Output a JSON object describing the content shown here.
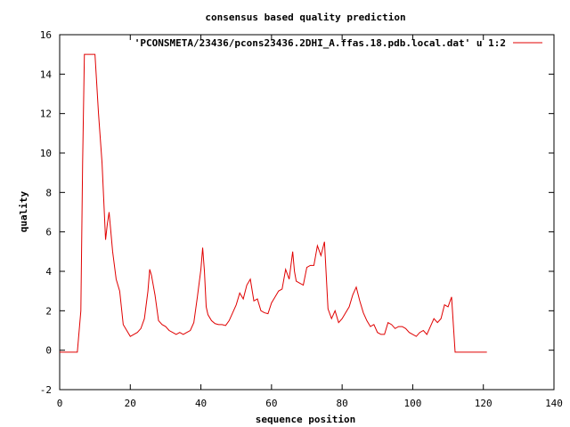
{
  "chart_data": {
    "type": "line",
    "title": "consensus based quality prediction",
    "xlabel": "sequence position",
    "ylabel": "quality",
    "xlim": [
      0,
      140
    ],
    "ylim": [
      -2,
      16
    ],
    "xticks": [
      0,
      20,
      40,
      60,
      80,
      100,
      120,
      140
    ],
    "yticks": [
      -2,
      0,
      2,
      4,
      6,
      8,
      10,
      12,
      14,
      16
    ],
    "grid": false,
    "legend_position": "top-right",
    "series": [
      {
        "name": "'PCONSMETA/23436/pcons23436.2DHI_A.ffas.18.pdb.local.dat' u 1:2",
        "color": "#e00000",
        "points": [
          [
            0,
            -0.1
          ],
          [
            1,
            -0.1
          ],
          [
            2,
            -0.1
          ],
          [
            3,
            -0.1
          ],
          [
            4,
            -0.1
          ],
          [
            5,
            -0.1
          ],
          [
            6,
            2.0
          ],
          [
            6.5,
            9.5
          ],
          [
            7,
            15.0
          ],
          [
            8,
            15.0
          ],
          [
            9,
            15.0
          ],
          [
            10,
            15.0
          ],
          [
            11,
            12.0
          ],
          [
            12,
            9.5
          ],
          [
            13,
            5.6
          ],
          [
            13.5,
            6.4
          ],
          [
            14,
            7.0
          ],
          [
            15,
            5.0
          ],
          [
            16,
            3.6
          ],
          [
            17,
            3.0
          ],
          [
            18,
            1.3
          ],
          [
            19,
            1.0
          ],
          [
            20,
            0.7
          ],
          [
            21,
            0.8
          ],
          [
            22,
            0.9
          ],
          [
            23,
            1.1
          ],
          [
            24,
            1.6
          ],
          [
            25,
            3.0
          ],
          [
            25.5,
            4.1
          ],
          [
            26,
            3.8
          ],
          [
            27,
            2.8
          ],
          [
            28,
            1.5
          ],
          [
            29,
            1.3
          ],
          [
            30,
            1.2
          ],
          [
            31,
            1.0
          ],
          [
            32,
            0.9
          ],
          [
            33,
            0.8
          ],
          [
            34,
            0.9
          ],
          [
            35,
            0.8
          ],
          [
            36,
            0.9
          ],
          [
            37,
            1.0
          ],
          [
            38,
            1.4
          ],
          [
            39,
            2.7
          ],
          [
            40,
            4.1
          ],
          [
            40.5,
            5.2
          ],
          [
            41,
            4.0
          ],
          [
            41.5,
            2.2
          ],
          [
            42,
            1.8
          ],
          [
            43,
            1.5
          ],
          [
            44,
            1.35
          ],
          [
            45,
            1.3
          ],
          [
            46,
            1.3
          ],
          [
            47,
            1.25
          ],
          [
            48,
            1.5
          ],
          [
            49,
            1.9
          ],
          [
            50,
            2.3
          ],
          [
            51,
            2.9
          ],
          [
            52,
            2.6
          ],
          [
            53,
            3.3
          ],
          [
            54,
            3.6
          ],
          [
            55,
            2.5
          ],
          [
            56,
            2.6
          ],
          [
            57,
            2.0
          ],
          [
            58,
            1.9
          ],
          [
            59,
            1.85
          ],
          [
            60,
            2.4
          ],
          [
            61,
            2.7
          ],
          [
            62,
            3.0
          ],
          [
            63,
            3.1
          ],
          [
            64,
            4.1
          ],
          [
            65,
            3.6
          ],
          [
            66,
            5.0
          ],
          [
            66.5,
            4.0
          ],
          [
            67,
            3.5
          ],
          [
            68,
            3.4
          ],
          [
            69,
            3.3
          ],
          [
            70,
            4.2
          ],
          [
            71,
            4.3
          ],
          [
            72,
            4.3
          ],
          [
            73,
            5.3
          ],
          [
            74,
            4.8
          ],
          [
            75,
            5.5
          ],
          [
            76,
            2.1
          ],
          [
            77,
            1.6
          ],
          [
            78,
            2.0
          ],
          [
            79,
            1.4
          ],
          [
            80,
            1.6
          ],
          [
            81,
            1.9
          ],
          [
            82,
            2.2
          ],
          [
            83,
            2.8
          ],
          [
            84,
            3.2
          ],
          [
            85,
            2.5
          ],
          [
            86,
            1.9
          ],
          [
            87,
            1.5
          ],
          [
            88,
            1.2
          ],
          [
            89,
            1.3
          ],
          [
            90,
            0.9
          ],
          [
            91,
            0.8
          ],
          [
            92,
            0.8
          ],
          [
            93,
            1.4
          ],
          [
            94,
            1.3
          ],
          [
            95,
            1.1
          ],
          [
            96,
            1.2
          ],
          [
            97,
            1.2
          ],
          [
            98,
            1.1
          ],
          [
            99,
            0.9
          ],
          [
            100,
            0.8
          ],
          [
            101,
            0.7
          ],
          [
            102,
            0.9
          ],
          [
            103,
            1.0
          ],
          [
            104,
            0.8
          ],
          [
            105,
            1.2
          ],
          [
            106,
            1.6
          ],
          [
            107,
            1.4
          ],
          [
            108,
            1.6
          ],
          [
            109,
            2.3
          ],
          [
            110,
            2.2
          ],
          [
            111,
            2.7
          ],
          [
            112,
            -0.1
          ],
          [
            113,
            -0.1
          ],
          [
            115,
            -0.1
          ],
          [
            118,
            -0.1
          ],
          [
            121,
            -0.1
          ]
        ]
      }
    ]
  }
}
